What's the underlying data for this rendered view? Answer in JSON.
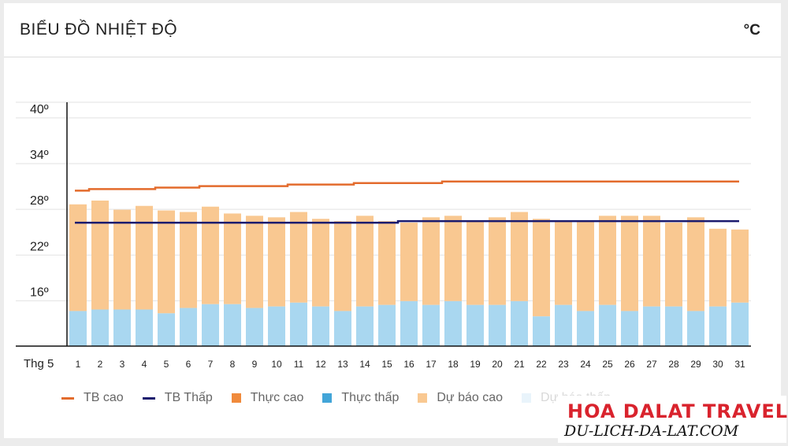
{
  "header": {
    "title": "BIỂU ĐỒ NHIỆT ĐỘ",
    "unit": "°C"
  },
  "colors": {
    "tb_cao": "#e36b2c",
    "tb_thap": "#1a1a6e",
    "thuc_cao": "#f08a3c",
    "thuc_thap": "#42a5d8",
    "du_bao_cao": "#f9c891",
    "du_bao_thap": "#a9d7f0"
  },
  "legend": [
    {
      "label": "TB cao",
      "type": "line",
      "color": "#e36b2c"
    },
    {
      "label": "TB Thấp",
      "type": "line",
      "color": "#1a1a6e"
    },
    {
      "label": "Thực cao",
      "type": "box",
      "color": "#f08a3c"
    },
    {
      "label": "Thực thấp",
      "type": "box",
      "color": "#42a5d8"
    },
    {
      "label": "Dự báo cao",
      "type": "box",
      "color": "#f9c891"
    },
    {
      "label": "Dự báo thấp",
      "type": "box",
      "color": "#a9d7f0"
    }
  ],
  "watermark": {
    "main": "HOA DALAT TRAVEL",
    "sub": "DU-LICH-DA-LAT.COM"
  },
  "chart_data": {
    "type": "bar",
    "x_prefix": "Thg 5",
    "categories": [
      "1",
      "2",
      "3",
      "4",
      "5",
      "6",
      "7",
      "8",
      "9",
      "10",
      "11",
      "12",
      "13",
      "14",
      "15",
      "16",
      "17",
      "18",
      "19",
      "20",
      "21",
      "22",
      "23",
      "24",
      "25",
      "26",
      "27",
      "28",
      "29",
      "30",
      "31"
    ],
    "yticks": [
      "40º",
      "34º",
      "28º",
      "22º",
      "16º"
    ],
    "ytick_values": [
      40,
      34,
      28,
      22,
      16
    ],
    "ylim": [
      10,
      42
    ],
    "grid": true,
    "legend_position": "bottom",
    "series": [
      {
        "name": "Dự báo cao",
        "kind": "bar_top",
        "values": [
          28.6,
          29.1,
          27.9,
          28.4,
          27.8,
          27.6,
          28.3,
          27.4,
          27.1,
          26.9,
          27.6,
          26.7,
          26.4,
          27.1,
          26.4,
          26.2,
          26.9,
          27.1,
          26.4,
          26.9,
          27.6,
          26.7,
          26.4,
          26.4,
          27.1,
          27.1,
          27.1,
          26.2,
          26.9,
          25.4,
          25.3
        ]
      },
      {
        "name": "Dự báo thấp",
        "kind": "bar_bottom",
        "values": [
          14.6,
          14.8,
          14.8,
          14.8,
          14.3,
          15.0,
          15.5,
          15.5,
          15.0,
          15.2,
          15.7,
          15.2,
          14.6,
          15.2,
          15.4,
          15.9,
          15.4,
          15.9,
          15.4,
          15.4,
          15.9,
          13.9,
          15.4,
          14.6,
          15.4,
          14.6,
          15.2,
          15.2,
          14.6,
          15.2,
          15.7
        ]
      },
      {
        "name": "TB cao",
        "kind": "line",
        "values": [
          30.4,
          30.6,
          30.6,
          30.6,
          30.8,
          30.8,
          31.0,
          31.0,
          31.0,
          31.0,
          31.2,
          31.2,
          31.2,
          31.4,
          31.4,
          31.4,
          31.4,
          31.6,
          31.6,
          31.6,
          31.6,
          31.6,
          31.6,
          31.6,
          31.6,
          31.6,
          31.6,
          31.6,
          31.6,
          31.6,
          31.6
        ]
      },
      {
        "name": "TB Thấp",
        "kind": "line",
        "values": [
          26.2,
          26.2,
          26.2,
          26.2,
          26.2,
          26.2,
          26.2,
          26.2,
          26.2,
          26.2,
          26.2,
          26.2,
          26.2,
          26.2,
          26.2,
          26.4,
          26.4,
          26.4,
          26.4,
          26.4,
          26.4,
          26.4,
          26.4,
          26.4,
          26.4,
          26.4,
          26.4,
          26.4,
          26.4,
          26.4,
          26.4
        ]
      }
    ]
  }
}
